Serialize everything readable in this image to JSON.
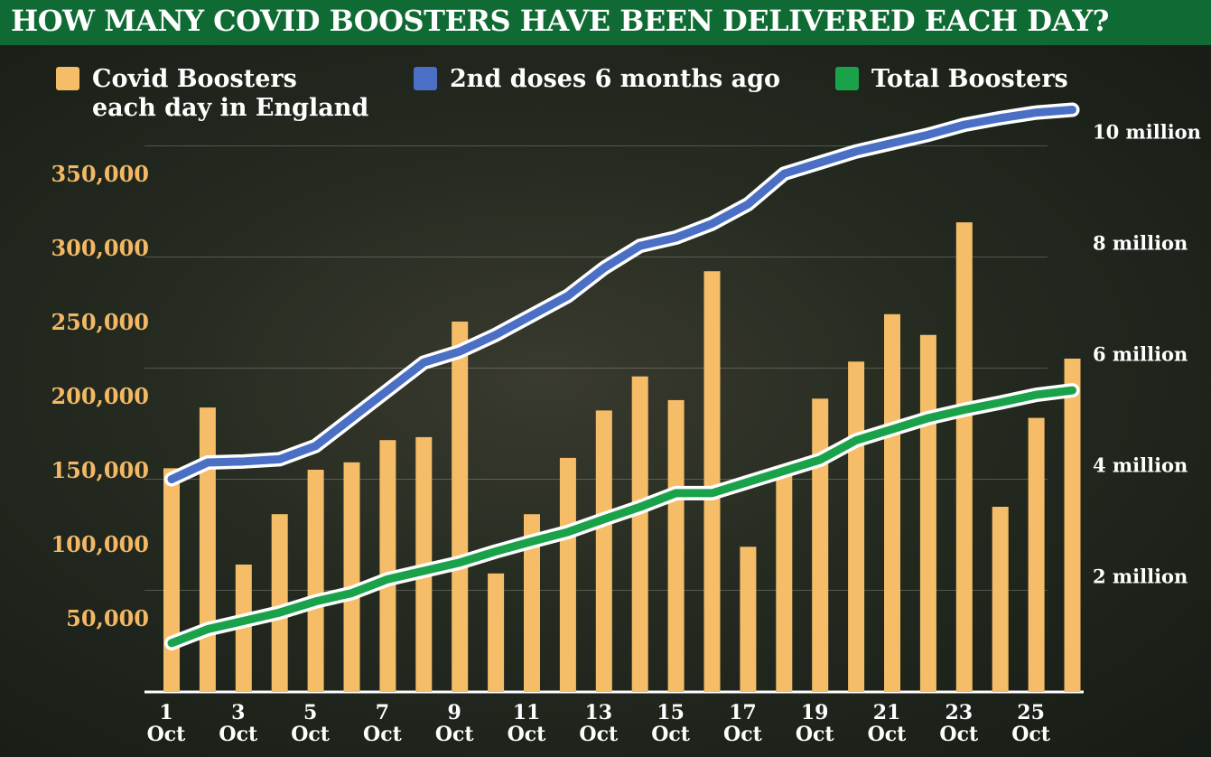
{
  "title": "HOW MANY COVID BOOSTERS HAVE BEEN DELIVERED EACH DAY?",
  "colors": {
    "header_bg": "#0f6b33",
    "bars": "#f5bd67",
    "second_doses": "#4a6fc4",
    "total_boosters": "#1aa24a",
    "left_axis_text": "#f2b865",
    "right_axis_text": "#ffffff"
  },
  "legend": [
    {
      "label_lines": [
        "Covid Boosters",
        "each day in England"
      ],
      "color": "#f5bd67"
    },
    {
      "label_lines": [
        "2nd doses 6 months ago"
      ],
      "color": "#4a6fc4"
    },
    {
      "label_lines": [
        "Total Boosters"
      ],
      "color": "#1aa24a"
    }
  ],
  "chart_data": {
    "type": "bar",
    "categories": [
      "1",
      "2",
      "3",
      "4",
      "5",
      "6",
      "7",
      "8",
      "9",
      "10",
      "11",
      "12",
      "13",
      "14",
      "15",
      "16",
      "17",
      "18",
      "19",
      "20",
      "21",
      "22",
      "23",
      "24",
      "25",
      "26"
    ],
    "x_tick_labels": [
      {
        "day": "1",
        "month": "Oct"
      },
      {
        "day": "3",
        "month": "Oct"
      },
      {
        "day": "5",
        "month": "Oct"
      },
      {
        "day": "7",
        "month": "Oct"
      },
      {
        "day": "9",
        "month": "Oct"
      },
      {
        "day": "11",
        "month": "Oct"
      },
      {
        "day": "13",
        "month": "Oct"
      },
      {
        "day": "15",
        "month": "Oct"
      },
      {
        "day": "17",
        "month": "Oct"
      },
      {
        "day": "19",
        "month": "Oct"
      },
      {
        "day": "21",
        "month": "Oct"
      },
      {
        "day": "23",
        "month": "Oct"
      },
      {
        "day": "25",
        "month": "Oct"
      }
    ],
    "series": [
      {
        "name": "Covid Boosters each day in England",
        "type": "bar",
        "axis": "left",
        "values": [
          151000,
          192000,
          86000,
          120000,
          150000,
          155000,
          170000,
          172000,
          250000,
          80000,
          120000,
          158000,
          190000,
          213000,
          197000,
          284000,
          98000,
          149000,
          198000,
          223000,
          255000,
          241000,
          317000,
          125000,
          185000,
          225000
        ]
      },
      {
        "name": "2nd doses 6 months ago",
        "type": "line",
        "axis": "right",
        "values": [
          4.0,
          4.3,
          4.32,
          4.36,
          4.6,
          5.1,
          5.6,
          6.1,
          6.3,
          6.6,
          6.95,
          7.3,
          7.8,
          8.2,
          8.35,
          8.6,
          8.95,
          9.5,
          9.7,
          9.9,
          10.05,
          10.2,
          10.38,
          10.5,
          10.6,
          10.65
        ]
      },
      {
        "name": "Total Boosters",
        "type": "line",
        "axis": "right",
        "values": [
          1.05,
          1.3,
          1.45,
          1.6,
          1.8,
          1.95,
          2.2,
          2.35,
          2.5,
          2.7,
          2.88,
          3.05,
          3.28,
          3.5,
          3.75,
          3.75,
          3.95,
          4.15,
          4.35,
          4.7,
          4.9,
          5.1,
          5.25,
          5.38,
          5.52,
          5.6
        ]
      }
    ],
    "left_axis": {
      "ticks": [
        50000,
        100000,
        150000,
        200000,
        250000,
        300000,
        350000
      ],
      "tick_labels": [
        "50,000",
        "100,000",
        "150,000",
        "200,000",
        "250,000",
        "300,000",
        "350,000"
      ],
      "ylim": [
        0,
        400000
      ]
    },
    "right_axis": {
      "ticks": [
        2,
        4,
        6,
        8,
        10
      ],
      "tick_labels": [
        "2 million",
        "4 million",
        "6 million",
        "8 million",
        "10 million"
      ]
    },
    "grid": true,
    "legend_position": "top"
  }
}
